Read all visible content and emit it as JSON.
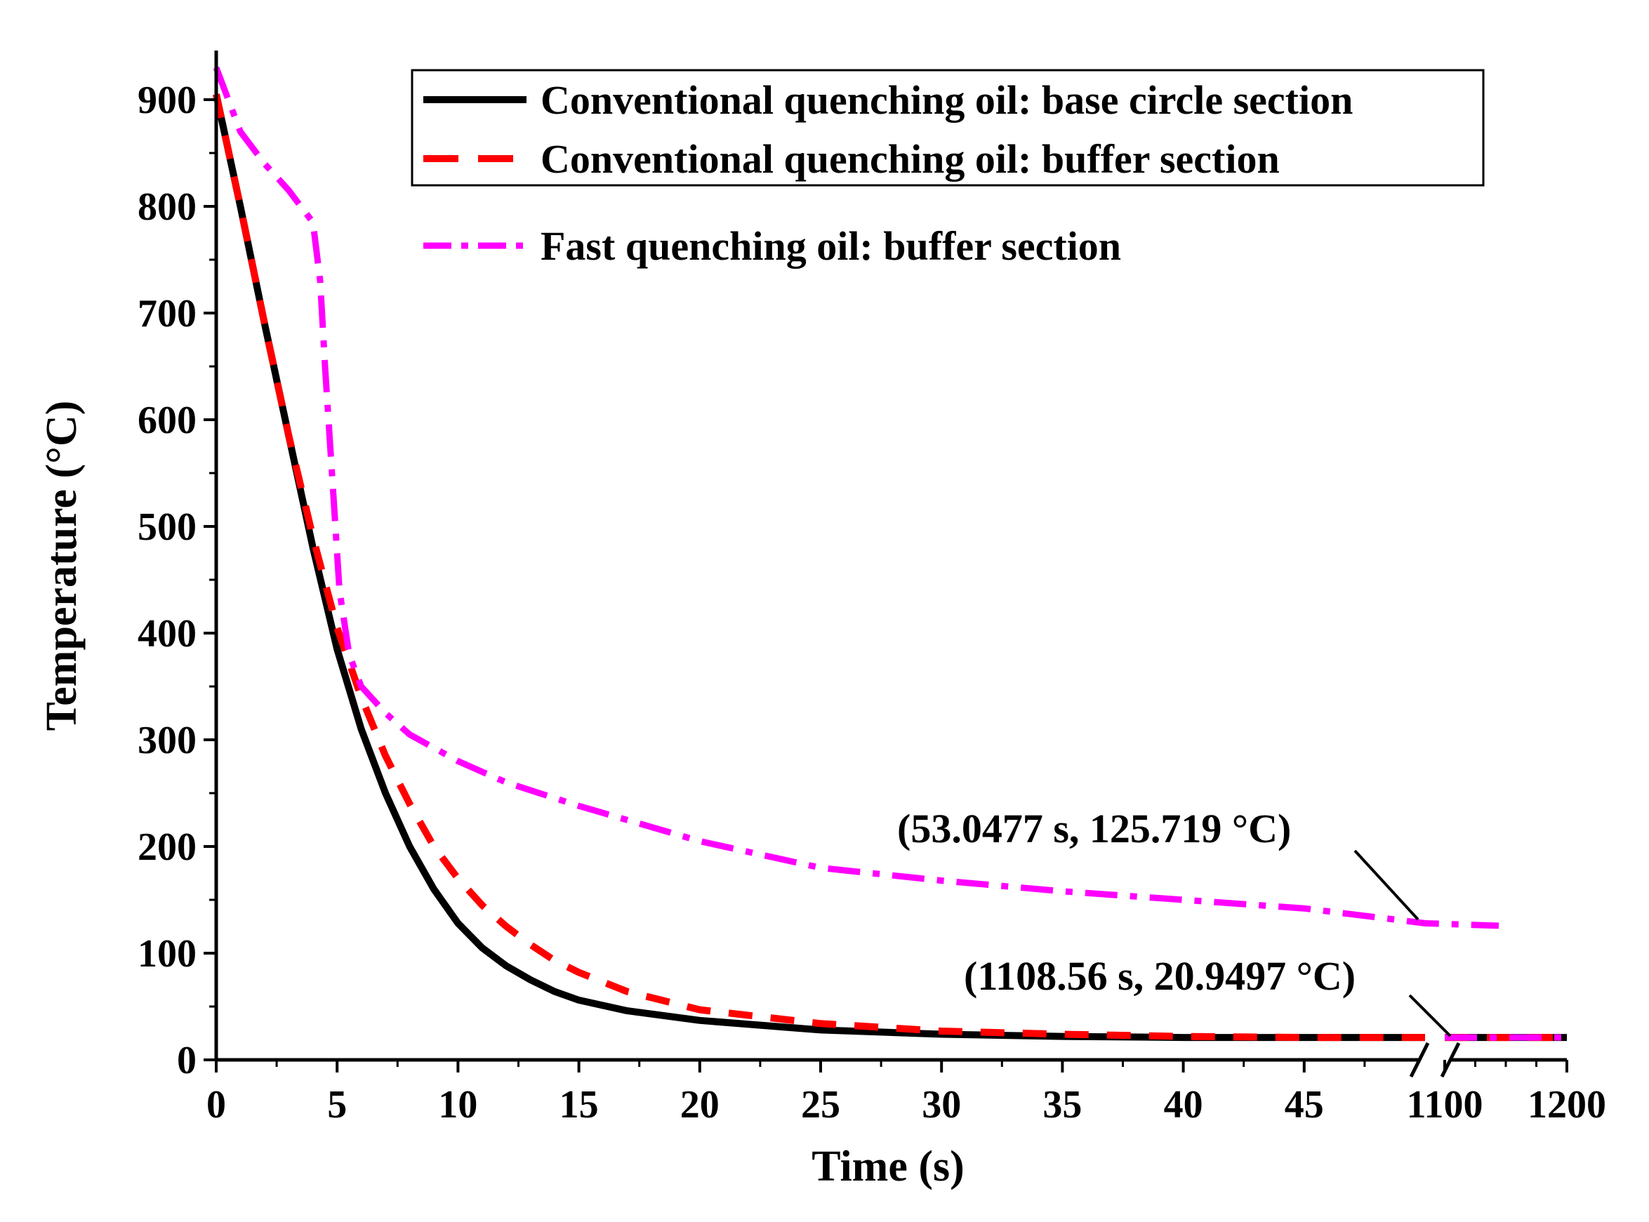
{
  "chart_data": {
    "type": "line",
    "xlabel": "Time (s)",
    "ylabel": "Temperature (°C)",
    "ylim": [
      0,
      950
    ],
    "x_axis": {
      "broken": true,
      "segment1": {
        "range": [
          0,
          50
        ],
        "ticks": [
          0,
          5,
          10,
          15,
          20,
          25,
          30,
          35,
          40,
          45
        ]
      },
      "segment2": {
        "range": [
          1100,
          1200
        ],
        "ticks": [
          1100,
          1200
        ]
      }
    },
    "y_ticks": [
      0,
      100,
      200,
      300,
      400,
      500,
      600,
      700,
      800,
      900
    ],
    "legend_position": "top-right",
    "series": [
      {
        "name": "Conventional quenching oil: base circle section",
        "color": "#000000",
        "style": "solid",
        "points": [
          [
            0,
            905
          ],
          [
            1,
            800
          ],
          [
            2,
            690
          ],
          [
            3,
            585
          ],
          [
            4,
            480
          ],
          [
            5,
            385
          ],
          [
            6,
            310
          ],
          [
            7,
            250
          ],
          [
            8,
            200
          ],
          [
            9,
            160
          ],
          [
            10,
            128
          ],
          [
            11,
            105
          ],
          [
            12,
            88
          ],
          [
            13,
            75
          ],
          [
            14,
            64
          ],
          [
            15,
            56
          ],
          [
            17,
            46
          ],
          [
            20,
            37
          ],
          [
            25,
            28
          ],
          [
            30,
            24
          ],
          [
            35,
            22
          ],
          [
            40,
            21
          ],
          [
            45,
            21
          ],
          [
            50,
            21
          ],
          [
            1100,
            21
          ],
          [
            1200,
            21
          ]
        ]
      },
      {
        "name": "Conventional quenching oil: buffer section",
        "color": "#ff0000",
        "style": "dashed",
        "points": [
          [
            0,
            905
          ],
          [
            1,
            800
          ],
          [
            2,
            690
          ],
          [
            3,
            585
          ],
          [
            4,
            490
          ],
          [
            5,
            405
          ],
          [
            6,
            340
          ],
          [
            7,
            285
          ],
          [
            8,
            240
          ],
          [
            9,
            200
          ],
          [
            10,
            170
          ],
          [
            11,
            145
          ],
          [
            12,
            125
          ],
          [
            13,
            108
          ],
          [
            14,
            93
          ],
          [
            15,
            82
          ],
          [
            17,
            64
          ],
          [
            20,
            47
          ],
          [
            25,
            34
          ],
          [
            30,
            27
          ],
          [
            35,
            24
          ],
          [
            40,
            22
          ],
          [
            45,
            21
          ],
          [
            50,
            21
          ],
          [
            1100,
            21
          ],
          [
            1200,
            21
          ]
        ]
      },
      {
        "name": "Fast quenching oil: buffer section",
        "color": "#ff00ff",
        "style": "dash-dot",
        "points": [
          [
            0,
            930
          ],
          [
            1,
            870
          ],
          [
            2,
            840
          ],
          [
            3,
            815
          ],
          [
            3.5,
            800
          ],
          [
            4,
            785
          ],
          [
            4.3,
            730
          ],
          [
            4.5,
            650
          ],
          [
            4.7,
            580
          ],
          [
            4.9,
            510
          ],
          [
            5.1,
            440
          ],
          [
            5.5,
            380
          ],
          [
            6,
            350
          ],
          [
            7,
            325
          ],
          [
            8,
            305
          ],
          [
            10,
            280
          ],
          [
            12,
            260
          ],
          [
            15,
            238
          ],
          [
            20,
            205
          ],
          [
            25,
            180
          ],
          [
            30,
            168
          ],
          [
            35,
            158
          ],
          [
            40,
            150
          ],
          [
            45,
            142
          ],
          [
            50,
            128
          ],
          [
            53.0477,
            125.719
          ],
          [
            1100,
            21
          ],
          [
            1200,
            21
          ]
        ]
      }
    ],
    "annotations": [
      {
        "text": "(53.0477 s, 125.719 °C)",
        "x": 53.0477,
        "y": 125.719
      },
      {
        "text": "(1108.56 s, 20.9497 °C)",
        "x": 1108.56,
        "y": 20.9497
      }
    ]
  }
}
